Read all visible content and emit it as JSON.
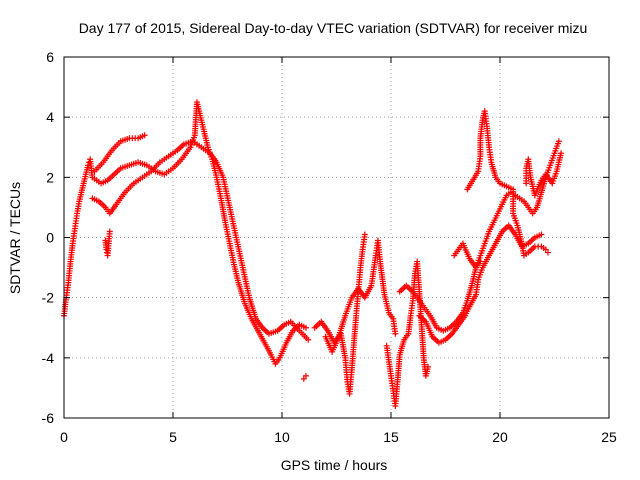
{
  "chart_data": {
    "type": "scatter",
    "title": "Day 177 of 2015, Sidereal Day-to-day VTEC variation (SDTVAR) for receiver mizu",
    "xlabel": "GPS time / hours",
    "ylabel": "SDTVAR / TECUs",
    "xlim": [
      0,
      25
    ],
    "ylim": [
      -6,
      6
    ],
    "xticks": [
      "0",
      "5",
      "10",
      "15",
      "20",
      "25"
    ],
    "yticks": [
      "-6",
      "-4",
      "-2",
      "0",
      "2",
      "4",
      "6"
    ],
    "grid": true,
    "marker": "+",
    "series": [
      {
        "name": "SDTVAR",
        "color": "#ff0000",
        "points": [
          [
            0.0,
            -2.6
          ],
          [
            0.1,
            -2.0
          ],
          [
            0.2,
            -1.5
          ],
          [
            0.3,
            -0.8
          ],
          [
            0.4,
            -0.2
          ],
          [
            0.5,
            0.3
          ],
          [
            0.6,
            0.8
          ],
          [
            0.7,
            1.2
          ],
          [
            0.8,
            1.5
          ],
          [
            0.9,
            1.8
          ],
          [
            1.0,
            2.1
          ],
          [
            1.1,
            2.4
          ],
          [
            1.2,
            2.6
          ],
          [
            1.3,
            2.0
          ],
          [
            1.5,
            1.9
          ],
          [
            1.7,
            1.8
          ],
          [
            2.0,
            1.9
          ],
          [
            2.3,
            2.1
          ],
          [
            2.6,
            2.3
          ],
          [
            3.0,
            2.4
          ],
          [
            3.4,
            2.5
          ],
          [
            3.8,
            2.4
          ],
          [
            4.2,
            2.2
          ],
          [
            4.6,
            2.1
          ],
          [
            5.0,
            2.3
          ],
          [
            5.4,
            2.6
          ],
          [
            5.8,
            3.0
          ],
          [
            6.0,
            3.4
          ],
          [
            6.1,
            4.5
          ],
          [
            6.2,
            4.2
          ],
          [
            6.4,
            3.6
          ],
          [
            6.6,
            3.0
          ],
          [
            6.8,
            2.6
          ],
          [
            7.0,
            2.0
          ],
          [
            7.2,
            1.3
          ],
          [
            7.4,
            0.5
          ],
          [
            7.6,
            -0.2
          ],
          [
            7.8,
            -0.9
          ],
          [
            8.0,
            -1.5
          ],
          [
            8.3,
            -2.2
          ],
          [
            8.6,
            -2.7
          ],
          [
            8.9,
            -3.1
          ],
          [
            9.2,
            -3.5
          ],
          [
            9.5,
            -3.9
          ],
          [
            9.7,
            -4.2
          ],
          [
            9.9,
            -4.0
          ],
          [
            10.2,
            -3.5
          ],
          [
            10.5,
            -3.1
          ],
          [
            10.8,
            -2.9
          ],
          [
            11.1,
            -3.0
          ],
          [
            1.4,
            2.2
          ],
          [
            1.8,
            2.5
          ],
          [
            2.2,
            2.9
          ],
          [
            2.6,
            3.2
          ],
          [
            3.0,
            3.3
          ],
          [
            3.4,
            3.3
          ],
          [
            3.7,
            3.4
          ],
          [
            1.3,
            1.3
          ],
          [
            1.6,
            1.2
          ],
          [
            1.9,
            1.0
          ],
          [
            2.1,
            0.8
          ],
          [
            2.4,
            1.1
          ],
          [
            2.8,
            1.5
          ],
          [
            3.2,
            1.8
          ],
          [
            3.6,
            2.0
          ],
          [
            4.0,
            2.2
          ],
          [
            4.4,
            2.5
          ],
          [
            4.8,
            2.7
          ],
          [
            5.2,
            2.9
          ],
          [
            5.5,
            3.1
          ],
          [
            5.9,
            3.2
          ],
          [
            6.3,
            3.0
          ],
          [
            6.7,
            2.8
          ],
          [
            7.0,
            2.5
          ],
          [
            7.3,
            2.0
          ],
          [
            7.6,
            1.0
          ],
          [
            7.9,
            0.0
          ],
          [
            8.2,
            -1.0
          ],
          [
            8.5,
            -2.0
          ],
          [
            8.8,
            -2.7
          ],
          [
            9.1,
            -3.0
          ],
          [
            9.4,
            -3.2
          ],
          [
            9.8,
            -3.1
          ],
          [
            10.1,
            -2.9
          ],
          [
            10.4,
            -2.8
          ],
          [
            10.8,
            -3.1
          ],
          [
            11.2,
            -3.4
          ],
          [
            1.9,
            -0.1
          ],
          [
            1.95,
            -0.4
          ],
          [
            2.0,
            -0.6
          ],
          [
            2.1,
            0.2
          ],
          [
            11.5,
            -3.0
          ],
          [
            11.8,
            -2.8
          ],
          [
            12.1,
            -3.1
          ],
          [
            12.4,
            -3.5
          ],
          [
            12.7,
            -3.2
          ],
          [
            12.9,
            -4.0
          ],
          [
            13.0,
            -4.8
          ],
          [
            13.1,
            -5.2
          ],
          [
            13.2,
            -4.4
          ],
          [
            13.3,
            -3.5
          ],
          [
            13.4,
            -2.6
          ],
          [
            13.5,
            -1.8
          ],
          [
            13.6,
            -1.0
          ],
          [
            13.7,
            -0.4
          ],
          [
            13.8,
            0.1
          ],
          [
            12.0,
            -3.3
          ],
          [
            12.3,
            -3.8
          ],
          [
            12.6,
            -3.3
          ],
          [
            12.9,
            -2.6
          ],
          [
            13.2,
            -2.0
          ],
          [
            13.5,
            -1.7
          ],
          [
            13.8,
            -2.0
          ],
          [
            14.1,
            -1.6
          ],
          [
            14.3,
            -0.6
          ],
          [
            14.4,
            -0.1
          ],
          [
            14.5,
            -0.8
          ],
          [
            14.7,
            -1.9
          ],
          [
            14.9,
            -2.5
          ],
          [
            15.1,
            -2.7
          ],
          [
            15.2,
            -3.2
          ],
          [
            11.0,
            -4.7
          ],
          [
            11.1,
            -4.6
          ],
          [
            14.8,
            -3.6
          ],
          [
            15.0,
            -4.6
          ],
          [
            15.1,
            -5.1
          ],
          [
            15.2,
            -5.6
          ],
          [
            15.3,
            -4.8
          ],
          [
            15.4,
            -3.9
          ],
          [
            15.6,
            -3.4
          ],
          [
            15.8,
            -3.2
          ],
          [
            15.9,
            -2.6
          ],
          [
            16.0,
            -2.1
          ],
          [
            16.1,
            -1.2
          ],
          [
            16.2,
            -0.8
          ],
          [
            16.3,
            -1.8
          ],
          [
            16.4,
            -2.9
          ],
          [
            16.5,
            -4.0
          ],
          [
            16.6,
            -4.6
          ],
          [
            16.7,
            -4.3
          ],
          [
            15.4,
            -1.8
          ],
          [
            15.7,
            -1.6
          ],
          [
            16.0,
            -1.8
          ],
          [
            16.4,
            -2.2
          ],
          [
            16.8,
            -2.6
          ],
          [
            17.1,
            -3.0
          ],
          [
            17.4,
            -3.1
          ],
          [
            17.7,
            -3.0
          ],
          [
            18.0,
            -2.8
          ],
          [
            18.3,
            -2.5
          ],
          [
            18.5,
            -2.1
          ],
          [
            18.7,
            -1.6
          ],
          [
            18.9,
            -1.0
          ],
          [
            19.1,
            -0.6
          ],
          [
            19.3,
            -0.2
          ],
          [
            19.5,
            0.2
          ],
          [
            19.7,
            0.5
          ],
          [
            19.9,
            0.8
          ],
          [
            20.1,
            1.1
          ],
          [
            20.3,
            1.4
          ],
          [
            20.5,
            1.5
          ],
          [
            20.7,
            1.4
          ],
          [
            20.9,
            1.3
          ],
          [
            21.1,
            1.2
          ],
          [
            21.3,
            1.0
          ],
          [
            21.5,
            0.8
          ],
          [
            21.7,
            1.0
          ],
          [
            21.9,
            1.5
          ],
          [
            22.1,
            2.0
          ],
          [
            22.3,
            2.4
          ],
          [
            22.5,
            2.8
          ],
          [
            22.7,
            3.2
          ],
          [
            16.3,
            -2.6
          ],
          [
            16.6,
            -2.8
          ],
          [
            16.9,
            -3.3
          ],
          [
            17.2,
            -3.5
          ],
          [
            17.5,
            -3.4
          ],
          [
            17.8,
            -3.2
          ],
          [
            18.1,
            -2.9
          ],
          [
            18.4,
            -2.6
          ],
          [
            18.6,
            -2.3
          ],
          [
            18.9,
            -1.9
          ],
          [
            19.0,
            -1.4
          ],
          [
            19.2,
            -1.0
          ],
          [
            19.5,
            -0.6
          ],
          [
            19.8,
            -0.2
          ],
          [
            20.1,
            0.2
          ],
          [
            20.4,
            0.4
          ],
          [
            20.7,
            0.1
          ],
          [
            21.0,
            -0.3
          ],
          [
            21.3,
            -0.2
          ],
          [
            21.6,
            0.0
          ],
          [
            21.9,
            0.1
          ],
          [
            17.9,
            -0.6
          ],
          [
            18.1,
            -0.4
          ],
          [
            18.3,
            -0.2
          ],
          [
            18.6,
            -0.7
          ],
          [
            18.9,
            -1.0
          ],
          [
            19.1,
            -0.8
          ],
          [
            18.5,
            1.6
          ],
          [
            19.0,
            2.2
          ],
          [
            19.1,
            2.7
          ],
          [
            19.1,
            3.3
          ],
          [
            19.2,
            3.9
          ],
          [
            19.3,
            4.2
          ],
          [
            19.4,
            3.7
          ],
          [
            19.5,
            3.0
          ],
          [
            19.6,
            2.5
          ],
          [
            19.8,
            2.0
          ],
          [
            20.0,
            1.8
          ],
          [
            20.3,
            1.7
          ],
          [
            20.6,
            1.6
          ],
          [
            20.6,
            0.8
          ],
          [
            20.8,
            0.4
          ],
          [
            21.0,
            -0.2
          ],
          [
            21.1,
            -0.6
          ],
          [
            21.3,
            -0.5
          ],
          [
            21.6,
            -0.3
          ],
          [
            21.9,
            -0.3
          ],
          [
            22.1,
            -0.4
          ],
          [
            22.2,
            -0.5
          ],
          [
            21.2,
            1.8
          ],
          [
            21.2,
            2.3
          ],
          [
            21.3,
            2.6
          ],
          [
            21.4,
            2.0
          ],
          [
            21.6,
            1.4
          ],
          [
            21.9,
            1.9
          ],
          [
            22.1,
            2.1
          ],
          [
            22.4,
            1.8
          ],
          [
            22.6,
            2.2
          ],
          [
            22.8,
            2.8
          ]
        ]
      }
    ]
  }
}
